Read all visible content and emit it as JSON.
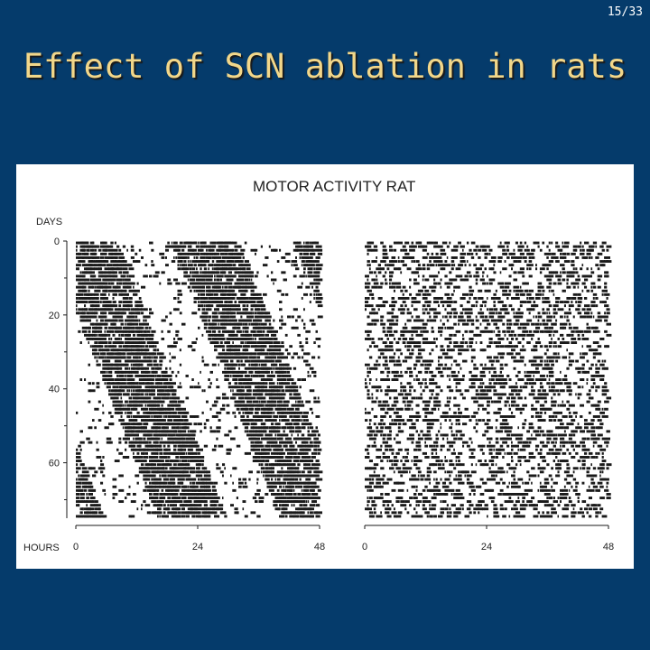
{
  "slide": {
    "number": "15/33",
    "title": "Effect of SCN ablation in rats"
  },
  "chart_data": {
    "type": "heatmap",
    "title": "MOTOR ACTIVITY RAT",
    "ylabel": "DAYS",
    "xlabel": "HOURS",
    "y_ticks": [
      "0",
      "20",
      "40",
      "60"
    ],
    "x_ticks": [
      "0",
      "24",
      "48"
    ],
    "ylim": [
      0,
      75
    ],
    "xlim": [
      0,
      48
    ],
    "panels": [
      {
        "pattern": "circadian rhythm with diagonal free-running bands"
      },
      {
        "pattern": "arrhythmic scattered activity"
      }
    ],
    "ink_color": "#1a1a1a"
  }
}
